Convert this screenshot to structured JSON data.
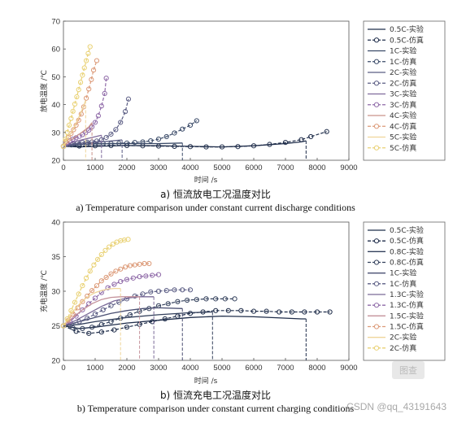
{
  "chart_data": [
    {
      "type": "line",
      "caption_cn": "a) 恒流放电工况温度对比",
      "caption_en": "a) Temperature comparison under constant current discharge conditions",
      "xlabel": "时间 /s",
      "ylabel": "放电温度 /℃",
      "xlim": [
        0,
        9000
      ],
      "ylim": [
        20,
        70
      ],
      "xticks": [
        0,
        1000,
        2000,
        3000,
        4000,
        5000,
        6000,
        7000,
        8000,
        9000
      ],
      "yticks": [
        20,
        30,
        40,
        50,
        60,
        70
      ],
      "legend_position": "right",
      "series": [
        {
          "name": "0.5C-实验",
          "color": "#1f2d4a",
          "style": "solid",
          "x": [
            0,
            500,
            1000,
            2000,
            3000,
            4000,
            5000,
            6000,
            7000,
            7500,
            7650
          ],
          "y": [
            25,
            24.8,
            25.0,
            25.3,
            25.2,
            25.0,
            24.8,
            25.2,
            26.0,
            26.6,
            27.0
          ]
        },
        {
          "name": "0.5C-仿真",
          "color": "#1f2d4a",
          "style": "dashed",
          "markers": true,
          "x": [
            0,
            500,
            1000,
            1500,
            2000,
            2500,
            3000,
            3500,
            4000,
            4500,
            5000,
            5500,
            6000,
            6500,
            7000,
            7500,
            7800,
            8300
          ],
          "y": [
            25,
            25.1,
            25.2,
            25.3,
            25.3,
            25.2,
            25.1,
            25.0,
            24.9,
            24.8,
            24.8,
            24.9,
            25.2,
            25.7,
            26.4,
            27.4,
            28.5,
            30.3
          ]
        },
        {
          "name": "1C-实验",
          "color": "#3a4a68",
          "style": "solid",
          "x": [
            0,
            500,
            1000,
            2000,
            3000,
            3750
          ],
          "y": [
            25,
            25.6,
            25.9,
            26.0,
            26.0,
            26.2
          ]
        },
        {
          "name": "1C-仿真",
          "color": "#3a4a68",
          "style": "dashed",
          "markers": true,
          "x": [
            0,
            250,
            500,
            750,
            1000,
            1250,
            1500,
            1750,
            2000,
            2250,
            2500,
            2750,
            3000,
            3250,
            3500,
            3750,
            4000,
            4200
          ],
          "y": [
            25,
            25.5,
            25.8,
            26.0,
            26.0,
            26.0,
            26.0,
            26.1,
            26.2,
            26.4,
            26.6,
            27.0,
            27.6,
            28.5,
            29.8,
            31.2,
            32.6,
            34.2
          ]
        },
        {
          "name": "2C-实验",
          "color": "#5b5d84",
          "style": "solid",
          "x": [
            0,
            400,
            900,
            1400,
            1850
          ],
          "y": [
            25,
            26.0,
            26.4,
            26.8,
            27.3
          ]
        },
        {
          "name": "2C-仿真",
          "color": "#5b5d84",
          "style": "dashed",
          "markers": true,
          "x": [
            0,
            150,
            300,
            450,
            600,
            750,
            900,
            1050,
            1200,
            1350,
            1500,
            1650,
            1800,
            1950,
            2050
          ],
          "y": [
            25,
            25.6,
            26.0,
            26.3,
            26.4,
            26.5,
            26.6,
            26.9,
            27.4,
            28.2,
            29.4,
            31.0,
            33.6,
            37.5,
            42.0
          ]
        },
        {
          "name": "3C-实验",
          "color": "#7f6a9c",
          "style": "solid",
          "x": [
            0,
            300,
            600,
            900,
            1200
          ],
          "y": [
            25,
            26.5,
            27.4,
            28.2,
            29.0
          ]
        },
        {
          "name": "3C-仿真",
          "color": "#8f6aa8",
          "style": "dashed",
          "markers": true,
          "x": [
            0,
            100,
            200,
            300,
            400,
            500,
            600,
            700,
            800,
            900,
            1000,
            1100,
            1200,
            1300,
            1350
          ],
          "y": [
            25,
            26.2,
            27.0,
            27.6,
            28.1,
            28.6,
            29.2,
            29.9,
            30.8,
            32.0,
            33.6,
            36.0,
            39.5,
            44.0,
            49.5
          ]
        },
        {
          "name": "4C-实验",
          "color": "#c9928a",
          "style": "solid",
          "x": [
            0,
            200,
            400,
            600,
            800,
            900
          ],
          "y": [
            25,
            27.0,
            28.6,
            30.2,
            32.0,
            33.5
          ]
        },
        {
          "name": "4C-仿真",
          "color": "#dc9a78",
          "style": "dashed",
          "markers": true,
          "x": [
            0,
            80,
            160,
            240,
            320,
            400,
            480,
            560,
            640,
            720,
            800,
            880,
            950,
            1050
          ],
          "y": [
            25,
            26.8,
            28.2,
            29.6,
            31.0,
            32.6,
            34.4,
            36.6,
            39.2,
            42.3,
            45.6,
            49.0,
            52.4,
            55.8
          ]
        },
        {
          "name": "5C-实验",
          "color": "#efd59a",
          "style": "solid",
          "x": [
            0,
            150,
            300,
            450,
            600,
            700
          ],
          "y": [
            25,
            28.0,
            31.0,
            34.5,
            38.5,
            41.5
          ]
        },
        {
          "name": "5C-仿真",
          "color": "#e9d173",
          "style": "dashed",
          "markers": true,
          "x": [
            0,
            60,
            120,
            180,
            240,
            300,
            360,
            420,
            480,
            540,
            600,
            660,
            720,
            780,
            840
          ],
          "y": [
            25,
            27.5,
            30.0,
            32.6,
            35.0,
            37.6,
            40.2,
            42.8,
            45.4,
            48.0,
            50.6,
            53.2,
            55.8,
            58.4,
            60.8
          ]
        }
      ]
    },
    {
      "type": "line",
      "caption_cn": "b) 恒流充电工况温度对比",
      "caption_en": "b) Temperature comparison under constant current charging conditions",
      "xlabel": "时间 /s",
      "ylabel": "充电温度 /℃",
      "xlim": [
        0,
        9000
      ],
      "ylim": [
        20,
        40
      ],
      "xticks": [
        0,
        1000,
        2000,
        3000,
        4000,
        5000,
        6000,
        7000,
        8000,
        9000
      ],
      "yticks": [
        20,
        25,
        30,
        35,
        40
      ],
      "legend_position": "right",
      "series": [
        {
          "name": "0.5C-实验",
          "color": "#1f2d4a",
          "style": "solid",
          "x": [
            0,
            500,
            1000,
            2000,
            3000,
            4000,
            5000,
            6000,
            7000,
            7500,
            7650
          ],
          "y": [
            25,
            24.6,
            24.8,
            25.4,
            25.8,
            26.2,
            26.4,
            26.3,
            26.1,
            26.0,
            26.0
          ]
        },
        {
          "name": "0.5C-仿真",
          "color": "#1f2d4a",
          "style": "dashed",
          "markers": true,
          "x": [
            0,
            400,
            800,
            1200,
            1600,
            2000,
            2400,
            2800,
            3200,
            3600,
            4000,
            4400,
            4800,
            5200,
            5600,
            6000,
            6400,
            6800,
            7200,
            7600,
            8000,
            8400
          ],
          "y": [
            25,
            24.2,
            23.9,
            24.1,
            24.4,
            24.8,
            25.2,
            25.6,
            26.0,
            26.4,
            26.8,
            27.0,
            27.2,
            27.2,
            27.2,
            27.1,
            27.1,
            27.0,
            27.0,
            27.0,
            27.0,
            27.0
          ]
        },
        {
          "name": "0.8C-实验",
          "color": "#33405c",
          "style": "solid",
          "x": [
            0,
            500,
            1000,
            2000,
            3000,
            4000,
            4700
          ],
          "y": [
            25,
            25.2,
            25.6,
            26.2,
            26.6,
            26.9,
            27.0
          ]
        },
        {
          "name": "0.8C-仿真",
          "color": "#33405c",
          "style": "dashed",
          "markers": true,
          "x": [
            0,
            300,
            600,
            900,
            1200,
            1500,
            1800,
            2100,
            2400,
            2700,
            3000,
            3300,
            3600,
            3900,
            4200,
            4500,
            4800,
            5100,
            5400
          ],
          "y": [
            25,
            24.7,
            24.6,
            24.8,
            25.2,
            25.6,
            26.1,
            26.6,
            27.1,
            27.5,
            27.9,
            28.2,
            28.5,
            28.7,
            28.8,
            28.9,
            28.9,
            28.9,
            28.9
          ]
        },
        {
          "name": "1C-实验",
          "color": "#4a4f72",
          "style": "solid",
          "x": [
            0,
            500,
            1000,
            1500,
            2000,
            2500,
            3000,
            3750
          ],
          "y": [
            25,
            25.6,
            26.2,
            26.8,
            27.2,
            27.5,
            27.6,
            27.5
          ]
        },
        {
          "name": "1C-仿真",
          "color": "#5b5d84",
          "style": "dashed",
          "markers": true,
          "x": [
            0,
            250,
            500,
            750,
            1000,
            1250,
            1500,
            1750,
            2000,
            2250,
            2500,
            2750,
            3000,
            3250,
            3500,
            3750,
            4000
          ],
          "y": [
            25,
            25.2,
            25.6,
            26.1,
            26.7,
            27.3,
            27.9,
            28.4,
            28.9,
            29.3,
            29.6,
            29.9,
            30.0,
            30.1,
            30.2,
            30.2,
            30.2
          ]
        },
        {
          "name": "1.3C-实验",
          "color": "#7a6a98",
          "style": "solid",
          "x": [
            0,
            400,
            800,
            1200,
            1600,
            2000,
            2400,
            2850
          ],
          "y": [
            25,
            25.8,
            26.8,
            27.8,
            28.6,
            29.0,
            29.2,
            29.2
          ]
        },
        {
          "name": "1.3C-仿真",
          "color": "#8f6aa8",
          "style": "dashed",
          "markers": true,
          "x": [
            0,
            200,
            400,
            600,
            800,
            1000,
            1200,
            1400,
            1600,
            1800,
            2000,
            2200,
            2400,
            2600,
            2800,
            3000
          ],
          "y": [
            25,
            25.6,
            26.4,
            27.3,
            28.2,
            29.0,
            29.8,
            30.5,
            31.0,
            31.4,
            31.7,
            31.9,
            32.1,
            32.2,
            32.3,
            32.4
          ]
        },
        {
          "name": "1.5C-实验",
          "color": "#c4919a",
          "style": "solid",
          "x": [
            0,
            300,
            600,
            900,
            1200,
            1500,
            1800,
            2150,
            2400
          ],
          "y": [
            25,
            26.2,
            27.3,
            28.2,
            28.8,
            29.1,
            29.2,
            29.2,
            29.2
          ]
        },
        {
          "name": "1.5C-仿真",
          "color": "#dc9a78",
          "style": "dashed",
          "markers": true,
          "x": [
            0,
            150,
            300,
            450,
            600,
            750,
            900,
            1050,
            1200,
            1350,
            1500,
            1650,
            1800,
            1950,
            2100,
            2250,
            2400,
            2550,
            2700
          ],
          "y": [
            25,
            25.8,
            26.7,
            27.6,
            28.5,
            29.3,
            30.1,
            30.8,
            31.5,
            32.0,
            32.5,
            32.9,
            33.2,
            33.5,
            33.7,
            33.8,
            33.9,
            34.0,
            34.0
          ]
        },
        {
          "name": "2C-实验",
          "color": "#efd59a",
          "style": "solid",
          "x": [
            0,
            200,
            400,
            600,
            800,
            1000,
            1200,
            1400,
            1600,
            1800
          ],
          "y": [
            25,
            26.4,
            27.6,
            28.6,
            29.3,
            29.8,
            30.1,
            30.3,
            30.4,
            30.4
          ]
        },
        {
          "name": "2C-仿真",
          "color": "#e9d173",
          "style": "dashed",
          "markers": true,
          "x": [
            0,
            120,
            240,
            360,
            480,
            600,
            720,
            840,
            960,
            1080,
            1200,
            1320,
            1440,
            1560,
            1680,
            1800,
            1920,
            2040
          ],
          "y": [
            25,
            26.0,
            27.2,
            28.4,
            29.6,
            30.8,
            31.9,
            32.9,
            33.8,
            34.6,
            35.3,
            35.9,
            36.4,
            36.8,
            37.1,
            37.3,
            37.4,
            37.5
          ]
        }
      ]
    }
  ],
  "watermark": "CSDN @qq_43191643",
  "logo_text": "图查"
}
